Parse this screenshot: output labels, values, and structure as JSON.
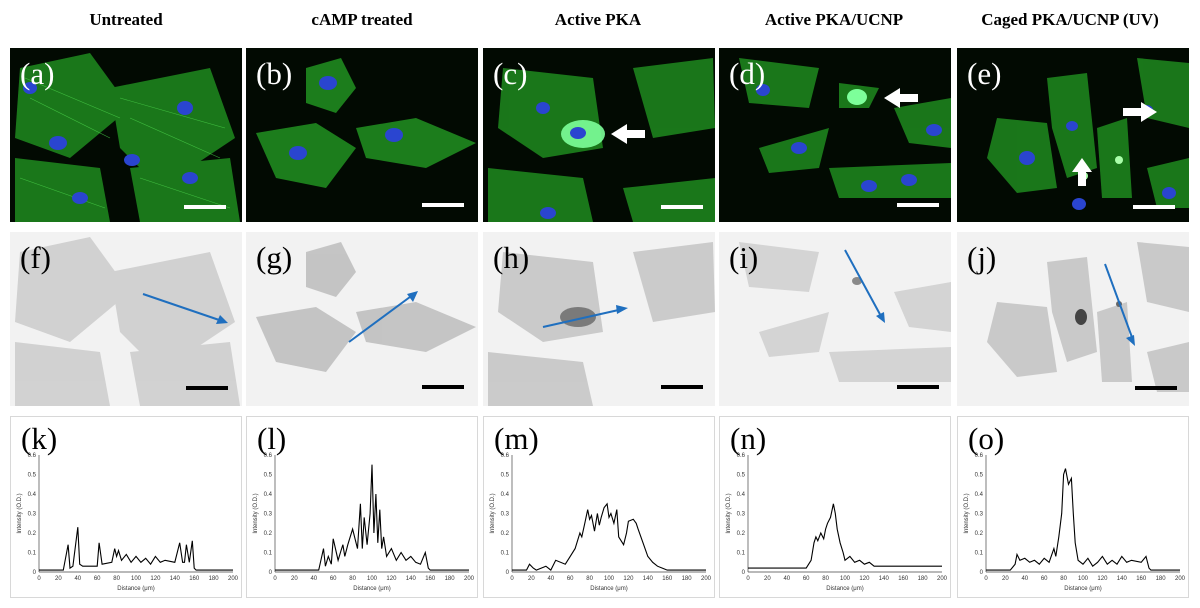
{
  "columns": [
    {
      "header": "Untreated"
    },
    {
      "header": "cAMP treated"
    },
    {
      "header": "Active PKA"
    },
    {
      "header": "Active PKA/UCNP"
    },
    {
      "header": "Caged PKA/UCNP (UV)"
    }
  ],
  "panel_labels": {
    "fluorescence": [
      "(a)",
      "(b)",
      "(c)",
      "(d)",
      "(e)"
    ],
    "grayscale": [
      "(f)",
      "(g)",
      "(h)",
      "(i)",
      "(j)"
    ],
    "profiles": [
      "(k)",
      "(l)",
      "(m)",
      "(n)",
      "(o)"
    ]
  },
  "colors": {
    "actin": "#2fbf2f",
    "nucleus": "#2a45d0",
    "arrow_line": "#1f6fbf",
    "scale_bar_fluor": "#ffffff",
    "scale_bar_gray": "#000000",
    "profile_line": "#000000"
  },
  "chart_data": [
    {
      "type": "line",
      "xlabel": "Distance (μm)",
      "ylabel": "Intensity (O.D.)",
      "xlim": [
        0,
        200
      ],
      "ylim": [
        0,
        0.6
      ],
      "xticks": [
        "0",
        "20",
        "40",
        "60",
        "80",
        "100",
        "120",
        "140",
        "160",
        "180",
        "200"
      ],
      "yticks": [
        "0",
        "0.1",
        "0.2",
        "0.3",
        "0.4",
        "0.5",
        "0.6"
      ],
      "series": [
        {
          "x": [
            0,
            25,
            30,
            32,
            35,
            40,
            42,
            45,
            60,
            62,
            65,
            75,
            78,
            80,
            82,
            85,
            90,
            95,
            100,
            105,
            110,
            115,
            120,
            125,
            130,
            140,
            145,
            148,
            150,
            152,
            155,
            158,
            160,
            162,
            165,
            200
          ],
          "values": [
            0.01,
            0.01,
            0.14,
            0.02,
            0.03,
            0.23,
            0.04,
            0.03,
            0.03,
            0.15,
            0.04,
            0.05,
            0.12,
            0.08,
            0.11,
            0.06,
            0.09,
            0.05,
            0.08,
            0.05,
            0.07,
            0.04,
            0.08,
            0.05,
            0.06,
            0.05,
            0.15,
            0.05,
            0.05,
            0.14,
            0.05,
            0.16,
            0.02,
            0.01,
            0.01,
            0.01
          ]
        }
      ]
    },
    {
      "type": "line",
      "xlabel": "Distance (μm)",
      "ylabel": "Intensity (O.D.)",
      "xlim": [
        0,
        200
      ],
      "ylim": [
        0,
        0.6
      ],
      "xticks": [
        "0",
        "20",
        "40",
        "60",
        "80",
        "100",
        "120",
        "140",
        "160",
        "180",
        "200"
      ],
      "yticks": [
        "0",
        "0.1",
        "0.2",
        "0.3",
        "0.4",
        "0.5",
        "0.6"
      ],
      "series": [
        {
          "x": [
            0,
            45,
            50,
            52,
            55,
            58,
            60,
            65,
            68,
            70,
            72,
            75,
            80,
            85,
            88,
            90,
            92,
            95,
            98,
            100,
            102,
            104,
            106,
            108,
            110,
            112,
            115,
            120,
            125,
            130,
            135,
            140,
            145,
            150,
            155,
            158,
            160,
            200
          ],
          "values": [
            0.01,
            0.01,
            0.12,
            0.03,
            0.08,
            0.04,
            0.17,
            0.06,
            0.11,
            0.14,
            0.08,
            0.14,
            0.22,
            0.12,
            0.35,
            0.12,
            0.28,
            0.14,
            0.3,
            0.55,
            0.2,
            0.4,
            0.15,
            0.32,
            0.12,
            0.18,
            0.08,
            0.12,
            0.06,
            0.1,
            0.06,
            0.08,
            0.05,
            0.04,
            0.1,
            0.02,
            0.01,
            0.01
          ]
        }
      ]
    },
    {
      "type": "line",
      "xlabel": "Distance (μm)",
      "ylabel": "Intensity (O.D.)",
      "xlim": [
        0,
        200
      ],
      "ylim": [
        0,
        0.6
      ],
      "xticks": [
        "0",
        "20",
        "40",
        "60",
        "80",
        "100",
        "120",
        "140",
        "160",
        "180",
        "200"
      ],
      "yticks": [
        "0",
        "0.1",
        "0.2",
        "0.3",
        "0.4",
        "0.5",
        "0.6"
      ],
      "series": [
        {
          "x": [
            0,
            15,
            18,
            22,
            25,
            35,
            40,
            45,
            55,
            60,
            65,
            70,
            72,
            75,
            78,
            80,
            82,
            85,
            88,
            90,
            92,
            95,
            98,
            100,
            102,
            105,
            108,
            110,
            115,
            118,
            120,
            125,
            128,
            130,
            135,
            140,
            145,
            150,
            155,
            160,
            200
          ],
          "values": [
            0.01,
            0.01,
            0.04,
            0.02,
            0.01,
            0.03,
            0.01,
            0.06,
            0.04,
            0.08,
            0.12,
            0.2,
            0.18,
            0.25,
            0.32,
            0.27,
            0.29,
            0.21,
            0.3,
            0.24,
            0.28,
            0.33,
            0.35,
            0.28,
            0.3,
            0.25,
            0.32,
            0.18,
            0.14,
            0.2,
            0.26,
            0.27,
            0.25,
            0.22,
            0.15,
            0.08,
            0.05,
            0.03,
            0.02,
            0.01,
            0.01
          ]
        }
      ]
    },
    {
      "type": "line",
      "xlabel": "Distance (μm)",
      "ylabel": "Intensity (O.D.)",
      "xlim": [
        0,
        200
      ],
      "ylim": [
        0,
        0.6
      ],
      "xticks": [
        "0",
        "20",
        "40",
        "60",
        "80",
        "100",
        "120",
        "140",
        "160",
        "180",
        "200"
      ],
      "yticks": [
        "0",
        "0.1",
        "0.2",
        "0.3",
        "0.4",
        "0.5",
        "0.6"
      ],
      "series": [
        {
          "x": [
            0,
            60,
            65,
            68,
            70,
            72,
            75,
            78,
            80,
            82,
            85,
            88,
            90,
            92,
            95,
            98,
            100,
            105,
            110,
            115,
            120,
            125,
            130,
            200
          ],
          "values": [
            0.02,
            0.02,
            0.06,
            0.15,
            0.18,
            0.16,
            0.2,
            0.17,
            0.22,
            0.25,
            0.28,
            0.35,
            0.3,
            0.22,
            0.15,
            0.1,
            0.06,
            0.08,
            0.05,
            0.06,
            0.04,
            0.05,
            0.03,
            0.03
          ]
        }
      ]
    },
    {
      "type": "line",
      "xlabel": "Distance (μm)",
      "ylabel": "Intensity (O.D.)",
      "xlim": [
        0,
        200
      ],
      "ylim": [
        0,
        0.6
      ],
      "xticks": [
        "0",
        "20",
        "40",
        "60",
        "80",
        "100",
        "120",
        "140",
        "160",
        "180",
        "200"
      ],
      "yticks": [
        "0",
        "0.1",
        "0.2",
        "0.3",
        "0.4",
        "0.5",
        "0.6"
      ],
      "series": [
        {
          "x": [
            0,
            25,
            30,
            32,
            35,
            40,
            45,
            50,
            55,
            60,
            65,
            70,
            72,
            75,
            78,
            80,
            82,
            85,
            88,
            90,
            92,
            95,
            100,
            105,
            110,
            115,
            120,
            125,
            130,
            135,
            140,
            145,
            150,
            160,
            165,
            168,
            170,
            200
          ],
          "values": [
            0.01,
            0.01,
            0.04,
            0.09,
            0.06,
            0.07,
            0.05,
            0.06,
            0.04,
            0.07,
            0.05,
            0.12,
            0.08,
            0.18,
            0.3,
            0.5,
            0.53,
            0.45,
            0.48,
            0.3,
            0.15,
            0.06,
            0.04,
            0.07,
            0.03,
            0.05,
            0.08,
            0.04,
            0.06,
            0.04,
            0.08,
            0.05,
            0.06,
            0.05,
            0.08,
            0.02,
            0.01,
            0.01
          ]
        }
      ]
    }
  ]
}
